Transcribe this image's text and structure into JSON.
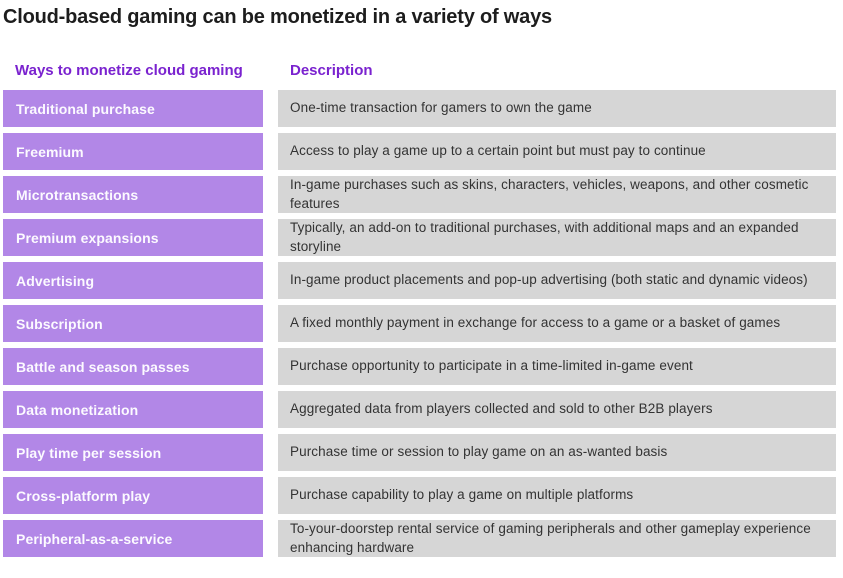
{
  "chart_data": {
    "type": "table",
    "title": "Cloud-based gaming can be monetized in a variety of ways",
    "columns": [
      "Ways to monetize cloud gaming",
      "Description"
    ],
    "rows": [
      [
        "Traditional purchase",
        "One-time transaction for gamers to own the game"
      ],
      [
        "Freemium",
        "Access to play a game up to a certain point but must pay to continue"
      ],
      [
        "Microtransactions",
        "In-game purchases such as skins, characters, vehicles, weapons, and other cosmetic features"
      ],
      [
        "Premium expansions",
        "Typically, an add-on to traditional purchases, with additional maps and an expanded storyline"
      ],
      [
        "Advertising",
        "In-game product placements and pop-up advertising (both static and dynamic videos)"
      ],
      [
        "Subscription",
        "A fixed monthly payment in exchange for access to a game or a basket of games"
      ],
      [
        "Battle and season passes",
        "Purchase opportunity to participate in a time-limited in-game event"
      ],
      [
        "Data monetization",
        "Aggregated data from players collected and sold to other B2B players"
      ],
      [
        "Play time per session",
        "Purchase time or session to play game on an as-wanted basis"
      ],
      [
        "Cross-platform play",
        "Purchase capability to play a game on multiple platforms"
      ],
      [
        "Peripheral-as-a-service",
        "To-your-doorstep rental service of gaming peripherals and other gameplay experience enhancing hardware"
      ]
    ],
    "layout": {
      "legend": "none",
      "grid": "off"
    }
  },
  "colors": {
    "accent_purple": "#7a22cf",
    "method_cell_bg": "#b287e7",
    "description_cell_bg": "#d6d6d6",
    "method_text": "#ffffff",
    "description_text": "#333333",
    "title_text": "#1d1d1d"
  }
}
